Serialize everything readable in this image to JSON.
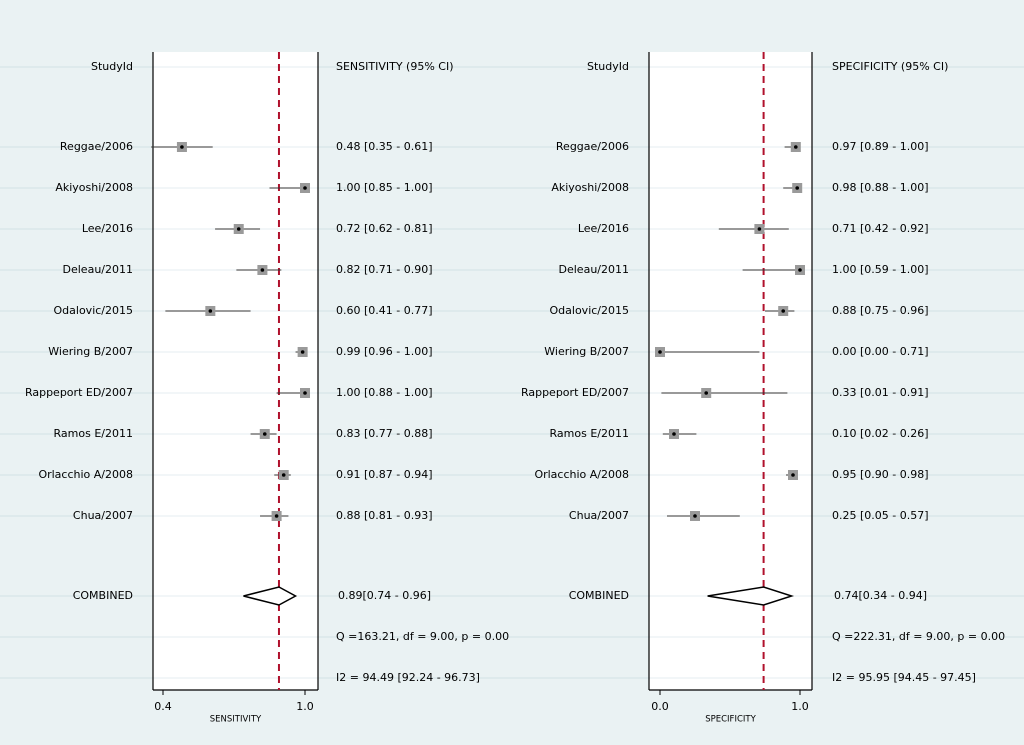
{
  "chart_data": {
    "type": "forest",
    "panels": [
      {
        "study_header": "StudyId",
        "ci_header": "SENSITIVITY (95% CI)",
        "axis_label": "SENSITIVITY",
        "x_range": [
          0.4,
          1.0
        ],
        "x_ticks": [
          {
            "value": 0.4,
            "label": "0.4"
          },
          {
            "value": 1.0,
            "label": "1.0"
          }
        ],
        "reference_line": 0.89,
        "studies": [
          {
            "name": "Reggae/2006",
            "est": 0.48,
            "lo": 0.35,
            "hi": 0.61,
            "label": "0.48 [0.35 - 0.61]"
          },
          {
            "name": "Akiyoshi/2008",
            "est": 1.0,
            "lo": 0.85,
            "hi": 1.0,
            "label": "1.00 [0.85 - 1.00]"
          },
          {
            "name": "Lee/2016",
            "est": 0.72,
            "lo": 0.62,
            "hi": 0.81,
            "label": "0.72 [0.62 - 0.81]"
          },
          {
            "name": "Deleau/2011",
            "est": 0.82,
            "lo": 0.71,
            "hi": 0.9,
            "label": "0.82 [0.71 - 0.90]"
          },
          {
            "name": "Odalovic/2015",
            "est": 0.6,
            "lo": 0.41,
            "hi": 0.77,
            "label": "0.60 [0.41 - 0.77]"
          },
          {
            "name": "Wiering B/2007",
            "est": 0.99,
            "lo": 0.96,
            "hi": 1.0,
            "label": "0.99 [0.96 - 1.00]"
          },
          {
            "name": "Rappeport ED/2007",
            "est": 1.0,
            "lo": 0.88,
            "hi": 1.0,
            "label": "1.00 [0.88 - 1.00]"
          },
          {
            "name": "Ramos E/2011",
            "est": 0.83,
            "lo": 0.77,
            "hi": 0.88,
            "label": "0.83 [0.77 - 0.88]"
          },
          {
            "name": "Orlacchio A/2008",
            "est": 0.91,
            "lo": 0.87,
            "hi": 0.94,
            "label": "0.91 [0.87 - 0.94]"
          },
          {
            "name": "Chua/2007",
            "est": 0.88,
            "lo": 0.81,
            "hi": 0.93,
            "label": "0.88 [0.81 - 0.93]"
          }
        ],
        "combined": {
          "name": "COMBINED",
          "est": 0.89,
          "lo": 0.74,
          "hi": 0.96,
          "label": "0.89[0.74 - 0.96]"
        },
        "heterogeneity": "Q =163.21, df = 9.00, p =  0.00",
        "i2": "I2 = 94.49 [92.24 - 96.73]"
      },
      {
        "study_header": "StudyId",
        "ci_header": "SPECIFICITY (95% CI)",
        "axis_label": "SPECIFICITY",
        "x_range": [
          0.0,
          1.0
        ],
        "x_ticks": [
          {
            "value": 0.0,
            "label": "0.0"
          },
          {
            "value": 1.0,
            "label": "1.0"
          }
        ],
        "reference_line": 0.74,
        "studies": [
          {
            "name": "Reggae/2006",
            "est": 0.97,
            "lo": 0.89,
            "hi": 1.0,
            "label": "0.97 [0.89 - 1.00]"
          },
          {
            "name": "Akiyoshi/2008",
            "est": 0.98,
            "lo": 0.88,
            "hi": 1.0,
            "label": "0.98 [0.88 - 1.00]"
          },
          {
            "name": "Lee/2016",
            "est": 0.71,
            "lo": 0.42,
            "hi": 0.92,
            "label": "0.71 [0.42 - 0.92]"
          },
          {
            "name": "Deleau/2011",
            "est": 1.0,
            "lo": 0.59,
            "hi": 1.0,
            "label": "1.00 [0.59 - 1.00]"
          },
          {
            "name": "Odalovic/2015",
            "est": 0.88,
            "lo": 0.75,
            "hi": 0.96,
            "label": "0.88 [0.75 - 0.96]"
          },
          {
            "name": "Wiering B/2007",
            "est": 0.0,
            "lo": 0.0,
            "hi": 0.71,
            "label": "0.00 [0.00 - 0.71]"
          },
          {
            "name": "Rappeport ED/2007",
            "est": 0.33,
            "lo": 0.01,
            "hi": 0.91,
            "label": "0.33 [0.01 - 0.91]"
          },
          {
            "name": "Ramos E/2011",
            "est": 0.1,
            "lo": 0.02,
            "hi": 0.26,
            "label": "0.10 [0.02 - 0.26]"
          },
          {
            "name": "Orlacchio A/2008",
            "est": 0.95,
            "lo": 0.9,
            "hi": 0.98,
            "label": "0.95 [0.90 - 0.98]"
          },
          {
            "name": "Chua/2007",
            "est": 0.25,
            "lo": 0.05,
            "hi": 0.57,
            "label": "0.25 [0.05 - 0.57]"
          }
        ],
        "combined": {
          "name": "COMBINED",
          "est": 0.74,
          "lo": 0.34,
          "hi": 0.94,
          "label": "0.74[0.34 - 0.94]"
        },
        "heterogeneity": "Q =222.31, df = 9.00, p =  0.00",
        "i2": "I2 = 95.95 [94.45 - 97.45]"
      }
    ],
    "colors": {
      "background": "#eaf2f3",
      "gridline": "#d3e3e6",
      "reference_line": "#b0112c",
      "marker_box": "#9a9a9a",
      "plot_area": "#ffffff"
    }
  }
}
